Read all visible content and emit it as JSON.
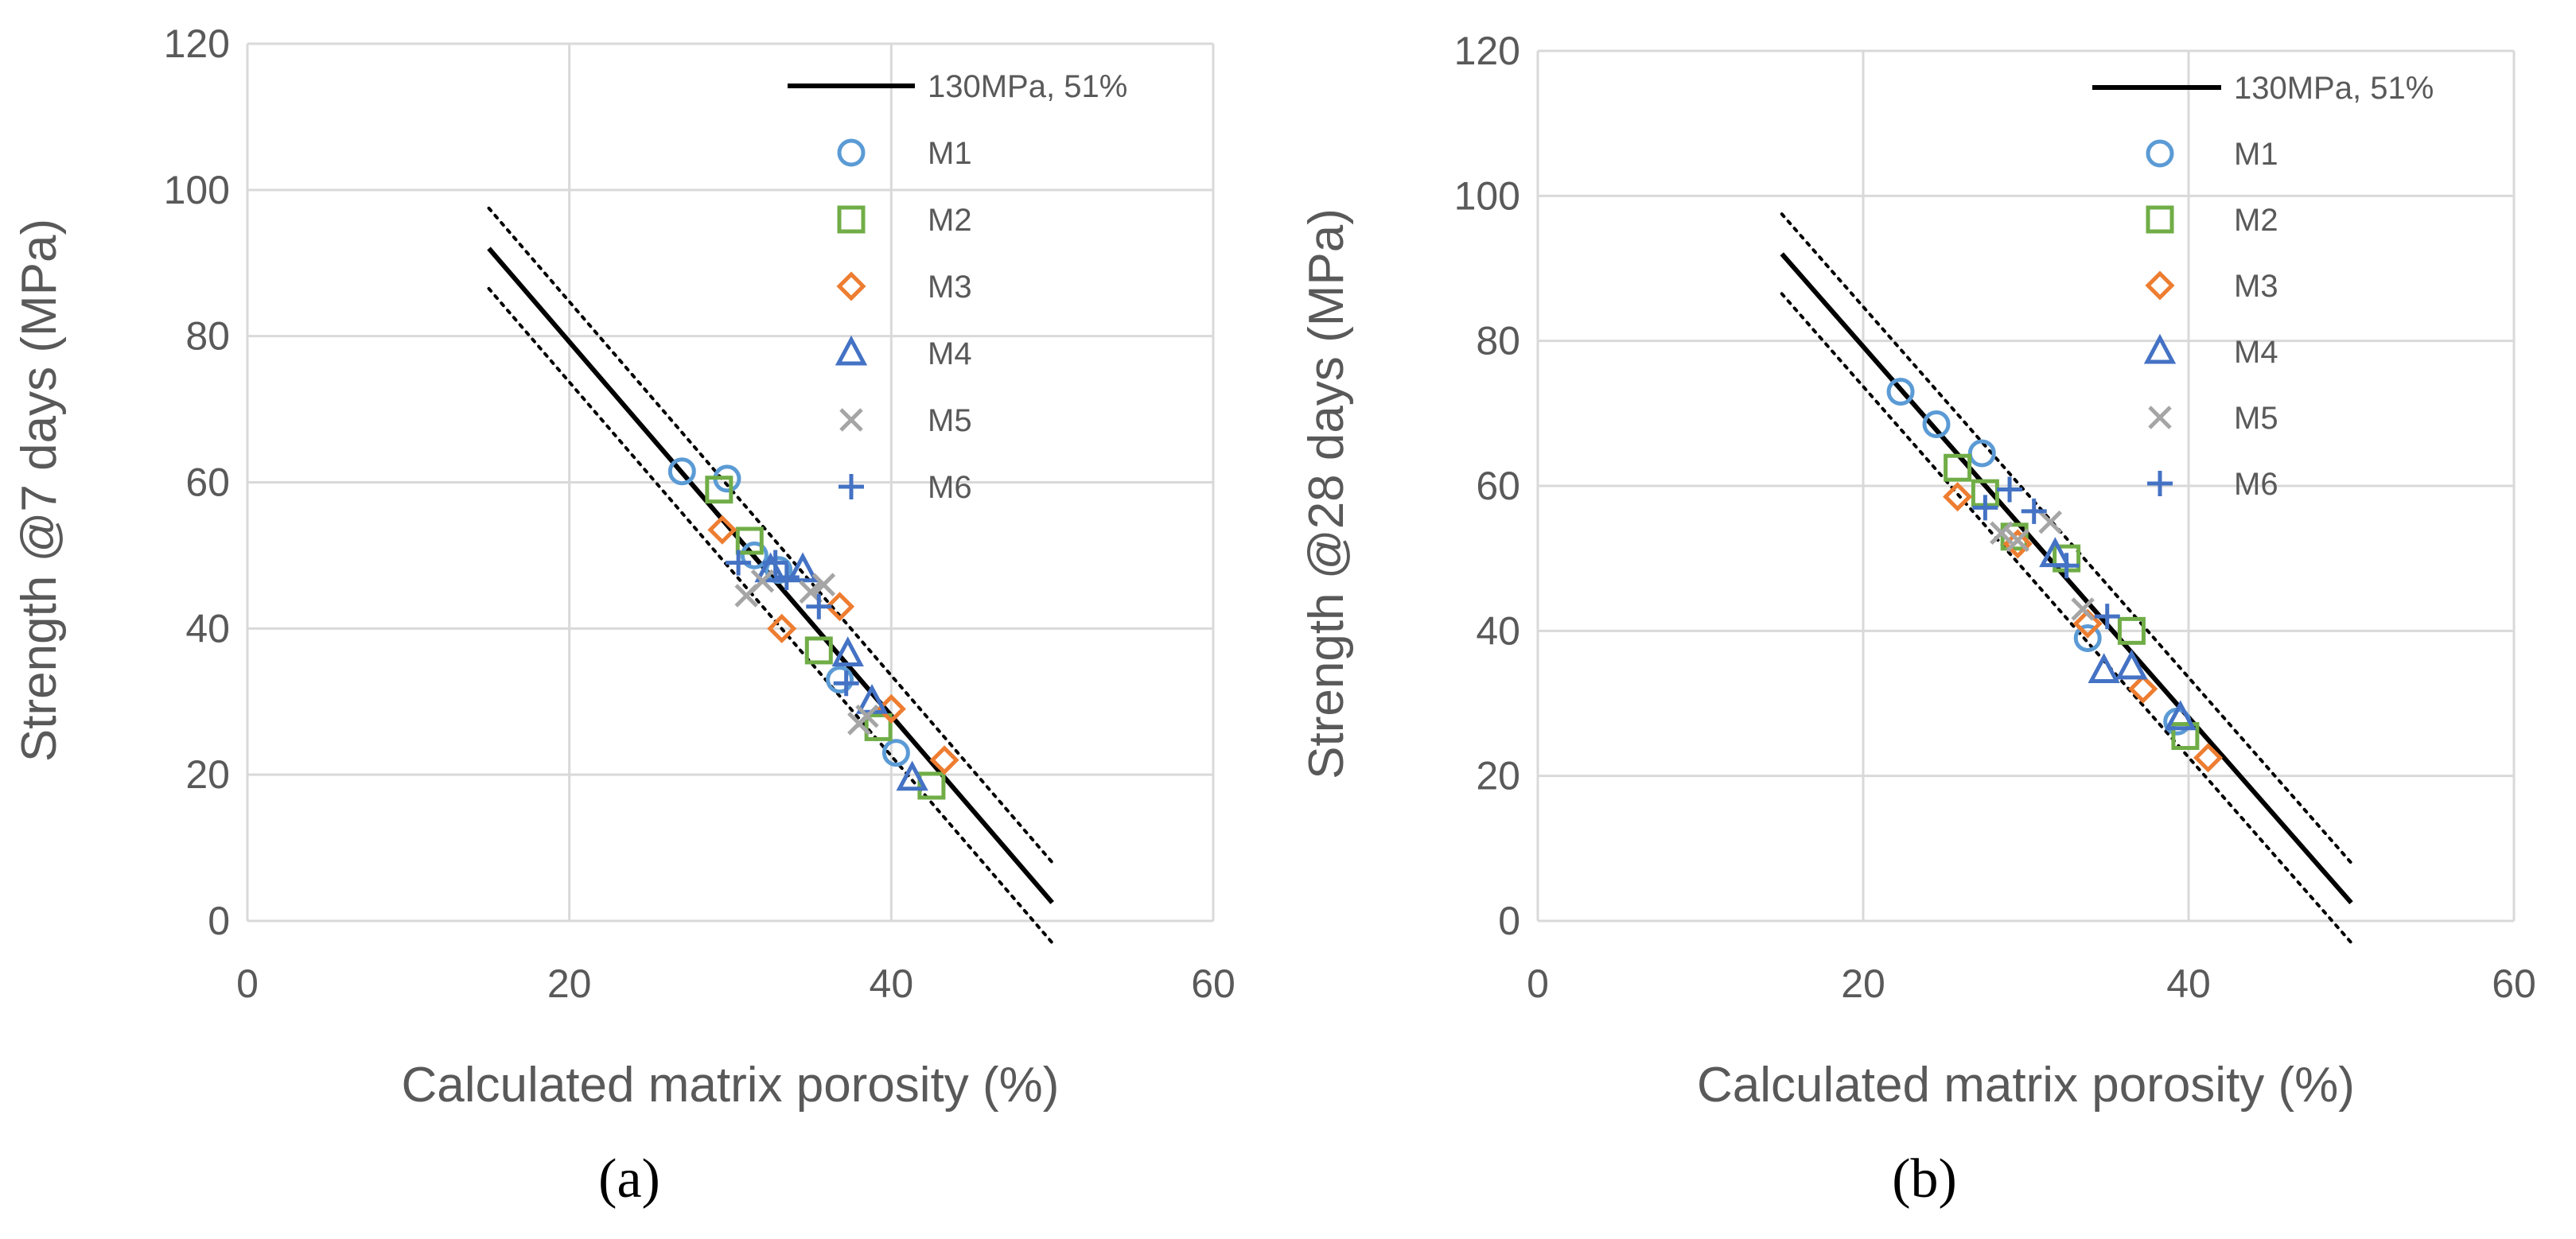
{
  "chart_data": [
    {
      "type": "scatter",
      "panel_label": "(a)",
      "xlabel": "Calculated matrix porosity (%)",
      "ylabel": "Strength @7 days (MPa)",
      "xlim": [
        0,
        60
      ],
      "ylim": [
        0,
        120
      ],
      "xticks": [
        0,
        20,
        40,
        60
      ],
      "yticks": [
        0,
        20,
        40,
        60,
        80,
        100,
        120
      ],
      "grid": true,
      "legend_position": "top-right",
      "fit_line": {
        "name": "130MPa, 51%",
        "x": [
          15,
          50
        ],
        "y": [
          92,
          2.5
        ],
        "band_offset": 5.5
      },
      "series": [
        {
          "name": "M1",
          "marker": "circle",
          "color": "#5B9BD5",
          "x": [
            27,
            29.8,
            31.5,
            33,
            36.8,
            40.3
          ],
          "y": [
            61.5,
            60.5,
            50,
            48,
            33,
            23
          ]
        },
        {
          "name": "M2",
          "marker": "square",
          "color": "#70AD47",
          "x": [
            29.3,
            31.2,
            35.5,
            39.2,
            42.5
          ],
          "y": [
            59,
            52,
            37,
            26.5,
            18.5
          ]
        },
        {
          "name": "M3",
          "marker": "diamond",
          "color": "#ED7D31",
          "x": [
            29.5,
            33.2,
            36.8,
            40,
            43.3
          ],
          "y": [
            53.5,
            40,
            43,
            29,
            22
          ]
        },
        {
          "name": "M4",
          "marker": "triangle",
          "color": "#4472C4",
          "x": [
            32.5,
            34.5,
            37.3,
            38.8,
            41.3
          ],
          "y": [
            48,
            48,
            36.5,
            30,
            19.5
          ]
        },
        {
          "name": "M5",
          "marker": "x",
          "color": "#A5A5A5",
          "x": [
            31,
            32,
            35,
            35.8,
            38,
            38.5
          ],
          "y": [
            44.5,
            46.5,
            45,
            46,
            27,
            28
          ]
        },
        {
          "name": "M6",
          "marker": "plus",
          "color": "#4472C4",
          "x": [
            30.5,
            32.8,
            33.5,
            35.5,
            37.2
          ],
          "y": [
            49,
            49,
            47,
            43,
            32.5
          ]
        }
      ]
    },
    {
      "type": "scatter",
      "panel_label": "(b)",
      "xlabel": "Calculated matrix porosity (%)",
      "ylabel": "Strength @28 days (MPa)",
      "xlim": [
        0,
        60
      ],
      "ylim": [
        0,
        120
      ],
      "xticks": [
        0,
        20,
        40,
        60
      ],
      "yticks": [
        0,
        20,
        40,
        60,
        80,
        100,
        120
      ],
      "grid": true,
      "legend_position": "top-right",
      "fit_line": {
        "name": "130MPa, 51%",
        "x": [
          15,
          50
        ],
        "y": [
          92,
          2.5
        ],
        "band_offset": 5.5
      },
      "series": [
        {
          "name": "M1",
          "marker": "circle",
          "color": "#5B9BD5",
          "x": [
            22.3,
            24.5,
            27.3,
            33.8,
            39.3
          ],
          "y": [
            73,
            68.5,
            64.5,
            39,
            27.5
          ]
        },
        {
          "name": "M2",
          "marker": "square",
          "color": "#70AD47",
          "x": [
            25.8,
            27.5,
            29.3,
            32.5,
            36.5,
            39.8
          ],
          "y": [
            62.5,
            59,
            53,
            50,
            40,
            25.5
          ]
        },
        {
          "name": "M3",
          "marker": "diamond",
          "color": "#ED7D31",
          "x": [
            25.8,
            29.5,
            33.8,
            37.2,
            41.2
          ],
          "y": [
            58.5,
            52,
            41,
            32,
            22.5
          ]
        },
        {
          "name": "M4",
          "marker": "triangle",
          "color": "#4472C4",
          "x": [
            31.8,
            34.8,
            36.5,
            39.5
          ],
          "y": [
            50.5,
            34.5,
            35,
            28
          ]
        },
        {
          "name": "M5",
          "marker": "x",
          "color": "#A5A5A5",
          "x": [
            28.5,
            29.5,
            31.5,
            33.5
          ],
          "y": [
            53.5,
            52.5,
            55,
            43
          ]
        },
        {
          "name": "M6",
          "marker": "plus",
          "color": "#4472C4",
          "x": [
            27.5,
            29,
            30.5,
            32.5,
            35
          ],
          "y": [
            57,
            59.5,
            56.5,
            49,
            42
          ]
        }
      ]
    }
  ]
}
